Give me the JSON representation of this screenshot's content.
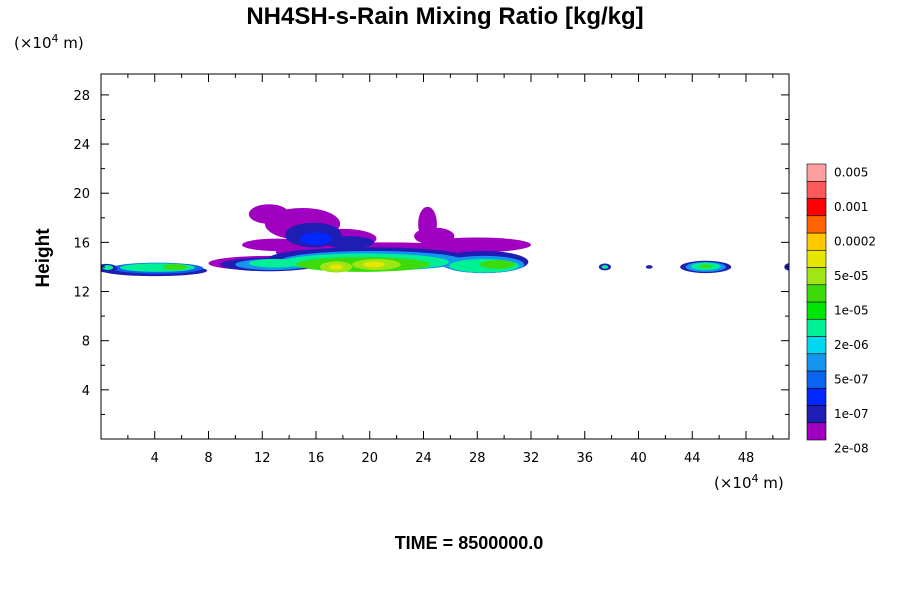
{
  "chart_data": {
    "type": "contour",
    "title": "NH4SH-s-Rain Mixing Ratio [kg/kg]",
    "x_unit_base": "(×10",
    "x_unit_exp": "4",
    "x_unit_tail": " m)",
    "y_unit_base": "(×10",
    "y_unit_exp": "4",
    "y_unit_tail": " m)",
    "ylabel": "Height",
    "xlim": [
      0,
      51.2
    ],
    "ylim": [
      0,
      29.7
    ],
    "x_ticks": [
      "4",
      "8",
      "12",
      "16",
      "20",
      "24",
      "28",
      "32",
      "36",
      "40",
      "44",
      "48"
    ],
    "x_tick_values": [
      4,
      8,
      12,
      16,
      20,
      24,
      28,
      32,
      36,
      40,
      44,
      48
    ],
    "y_ticks": [
      "4",
      "8",
      "12",
      "16",
      "20",
      "24",
      "28"
    ],
    "y_tick_values": [
      4,
      8,
      12,
      16,
      20,
      24,
      28
    ],
    "time_label": "TIME = 8500000.0",
    "colorbar_labels": [
      "0.005",
      "0.001",
      "0.0002",
      "5e-05",
      "1e-05",
      "2e-06",
      "5e-07",
      "1e-07",
      "2e-08"
    ],
    "colorbar_colors": [
      "#a000c0",
      "#1e1eb4",
      "#0028ff",
      "#0a64f0",
      "#1496f0",
      "#00d7f0",
      "#00f096",
      "#00e600",
      "#3cdc0a",
      "#a0e614",
      "#e6e600",
      "#ffc800",
      "#ff6400",
      "#ff0000",
      "#ff5a5a",
      "#ffa0a0"
    ],
    "blobs": [
      {
        "level": 1,
        "x": [
          4,
          19
        ],
        "y": [
          13.4,
          14.1
        ],
        "cx": 4,
        "cy": 13.7,
        "rx": 3.9,
        "ry": 0.45
      },
      {
        "level": 3,
        "cx": 4.2,
        "cy": 13.9,
        "rx": 3.4,
        "ry": 0.45
      },
      {
        "level": 6,
        "cx": 4.2,
        "cy": 13.95,
        "rx": 2.8,
        "ry": 0.35
      },
      {
        "level": 8,
        "cx": 5.5,
        "cy": 14.0,
        "rx": 0.9,
        "ry": 0.22
      },
      {
        "level": 1,
        "cx": 0.4,
        "cy": 13.9,
        "rx": 0.8,
        "ry": 0.35
      },
      {
        "level": 6,
        "cx": 0.5,
        "cy": 13.95,
        "rx": 0.4,
        "ry": 0.2
      },
      {
        "level": 0,
        "cx": 12.5,
        "cy": 18.3,
        "rx": 1.5,
        "ry": 0.8
      },
      {
        "level": 0,
        "cx": 15.0,
        "cy": 17.5,
        "rx": 2.8,
        "ry": 1.3
      },
      {
        "level": 0,
        "cx": 18.0,
        "cy": 16.3,
        "rx": 2.5,
        "ry": 0.8
      },
      {
        "level": 0,
        "cx": 13.0,
        "cy": 15.8,
        "rx": 2.5,
        "ry": 0.5
      },
      {
        "level": 0,
        "cx": 24.3,
        "cy": 17.5,
        "rx": 0.7,
        "ry": 1.4
      },
      {
        "level": 0,
        "cx": 24.8,
        "cy": 16.5,
        "rx": 1.5,
        "ry": 0.7
      },
      {
        "level": 0,
        "cx": 28.0,
        "cy": 15.8,
        "rx": 4.0,
        "ry": 0.6
      },
      {
        "level": 0,
        "cx": 21.0,
        "cy": 15.2,
        "rx": 8.0,
        "ry": 0.8
      },
      {
        "level": 0,
        "cx": 12.5,
        "cy": 14.3,
        "rx": 4.5,
        "ry": 0.6
      },
      {
        "level": 1,
        "cx": 15.8,
        "cy": 16.6,
        "rx": 2.1,
        "ry": 1.0
      },
      {
        "level": 1,
        "cx": 18.5,
        "cy": 16.0,
        "rx": 1.8,
        "ry": 0.5
      },
      {
        "level": 1,
        "cx": 20.0,
        "cy": 14.7,
        "rx": 7.5,
        "ry": 0.9
      },
      {
        "level": 1,
        "cx": 28.5,
        "cy": 14.4,
        "rx": 3.3,
        "ry": 0.9
      },
      {
        "level": 1,
        "cx": 12.5,
        "cy": 14.2,
        "rx": 3.6,
        "ry": 0.55
      },
      {
        "level": 2,
        "cx": 16.0,
        "cy": 16.3,
        "rx": 1.2,
        "ry": 0.5
      },
      {
        "level": 4,
        "cx": 20.2,
        "cy": 14.5,
        "rx": 6.8,
        "ry": 0.8
      },
      {
        "level": 4,
        "cx": 28.5,
        "cy": 14.2,
        "rx": 3.0,
        "ry": 0.7
      },
      {
        "level": 4,
        "cx": 12.8,
        "cy": 14.2,
        "rx": 2.8,
        "ry": 0.45
      },
      {
        "level": 6,
        "cx": 19.7,
        "cy": 14.4,
        "rx": 6.2,
        "ry": 0.7
      },
      {
        "level": 6,
        "cx": 28.5,
        "cy": 14.1,
        "rx": 2.6,
        "ry": 0.55
      },
      {
        "level": 6,
        "cx": 13.0,
        "cy": 14.3,
        "rx": 2.0,
        "ry": 0.35
      },
      {
        "level": 8,
        "cx": 19.5,
        "cy": 14.2,
        "rx": 5.0,
        "ry": 0.6
      },
      {
        "level": 8,
        "cx": 29.5,
        "cy": 14.2,
        "rx": 1.3,
        "ry": 0.35
      },
      {
        "level": 9,
        "cx": 17.5,
        "cy": 14.0,
        "rx": 1.2,
        "ry": 0.45
      },
      {
        "level": 9,
        "cx": 20.5,
        "cy": 14.2,
        "rx": 1.8,
        "ry": 0.45
      },
      {
        "level": 10,
        "cx": 20.3,
        "cy": 14.2,
        "rx": 0.8,
        "ry": 0.25
      },
      {
        "level": 10,
        "cx": 17.5,
        "cy": 14.0,
        "rx": 0.5,
        "ry": 0.22
      },
      {
        "level": 1,
        "cx": 37.5,
        "cy": 14.0,
        "rx": 0.45,
        "ry": 0.28
      },
      {
        "level": 6,
        "cx": 37.5,
        "cy": 14.0,
        "rx": 0.25,
        "ry": 0.15
      },
      {
        "level": 1,
        "cx": 40.8,
        "cy": 14.0,
        "rx": 0.25,
        "ry": 0.15
      },
      {
        "level": 1,
        "cx": 45.0,
        "cy": 14.0,
        "rx": 1.9,
        "ry": 0.5
      },
      {
        "level": 4,
        "cx": 45.0,
        "cy": 14.0,
        "rx": 1.5,
        "ry": 0.4
      },
      {
        "level": 6,
        "cx": 45.0,
        "cy": 14.05,
        "rx": 1.1,
        "ry": 0.3
      },
      {
        "level": 8,
        "cx": 45.0,
        "cy": 14.05,
        "rx": 0.5,
        "ry": 0.15
      },
      {
        "level": 1,
        "cx": 51.2,
        "cy": 14.0,
        "rx": 0.35,
        "ry": 0.3
      }
    ]
  }
}
